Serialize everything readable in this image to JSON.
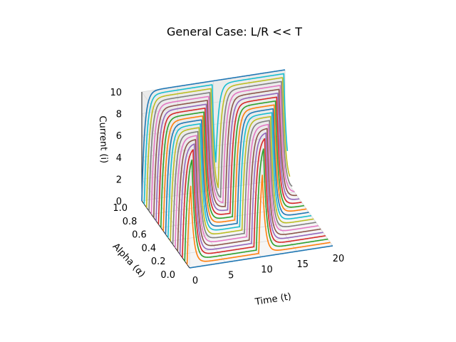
{
  "chart_data": {
    "type": "line",
    "projection": "3d",
    "title": "General Case: L/R << T",
    "xlabel": "Time (t)",
    "ylabel": "Alpha (α)",
    "zlabel": "Current (i)",
    "xlim": [
      0,
      20
    ],
    "ylim": [
      0,
      1
    ],
    "zlim": [
      0,
      10
    ],
    "x_ticks": [
      "0",
      "5",
      "10",
      "15",
      "20"
    ],
    "y_ticks": [
      "0.0",
      "0.2",
      "0.4",
      "0.6",
      "0.8",
      "1.0"
    ],
    "z_ticks": [
      "0",
      "2",
      "4",
      "6",
      "8",
      "10"
    ],
    "grid": true,
    "series_description": "One curve per alpha value from 0 to 1; each is a square-wave driven RL current rising to 10 when the source is on and decaying to 0 when off. Alpha is the duty-cycle fraction of each period.",
    "alpha_values": [
      0,
      0.05,
      0.1,
      0.15,
      0.2,
      0.25,
      0.3,
      0.35,
      0.4,
      0.45,
      0.5,
      0.55,
      0.6,
      0.65,
      0.7,
      0.75,
      0.8,
      0.85,
      0.9,
      0.95,
      1.0
    ],
    "model": {
      "amplitude": 10,
      "period": 10,
      "time_constant": 0.4,
      "t_end": 20
    },
    "colors": [
      "#1f77b4",
      "#ff7f0e",
      "#2ca02c",
      "#d62728",
      "#9467bd",
      "#8c564b",
      "#e377c2",
      "#7f7f7f",
      "#bcbd22",
      "#17becf"
    ]
  }
}
